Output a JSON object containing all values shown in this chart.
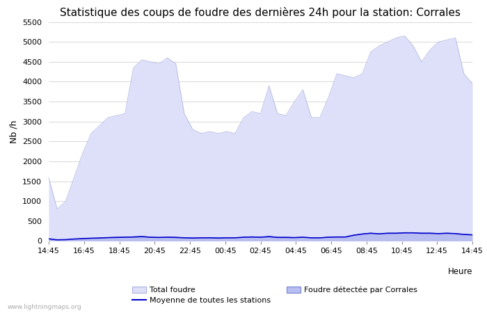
{
  "title": "Statistique des coups de foudre des dernières 24h pour la station: Corrales",
  "ylabel": "Nb /h",
  "xlabel": "Heure",
  "watermark": "www.lightningmaps.org",
  "xlabels": [
    "14:45",
    "16:45",
    "18:45",
    "20:45",
    "22:45",
    "00:45",
    "02:45",
    "04:45",
    "06:45",
    "08:45",
    "10:45",
    "12:45",
    "14:45"
  ],
  "ylim": [
    0,
    5500
  ],
  "yticks": [
    0,
    500,
    1000,
    1500,
    2000,
    2500,
    3000,
    3500,
    4000,
    4500,
    5000,
    5500
  ],
  "total_foudre_color": "#dde0f8",
  "total_foudre_edge": "#aab0e0",
  "corrales_color": "#b8bef0",
  "corrales_edge": "#7080d8",
  "moyenne_color": "#0000cc",
  "legend1_label": "Total foudre",
  "legend2_label": "Moyenne de toutes les stations",
  "legend3_label": "Foudre détectée par Corrales",
  "bg_color": "#ffffff",
  "grid_color": "#c8c8c8",
  "title_fontsize": 11,
  "tick_fontsize": 8,
  "total_foudre": [
    1600,
    800,
    1000,
    1600,
    2200,
    2700,
    2900,
    3100,
    3150,
    3200,
    4350,
    4550,
    4500,
    4450,
    4600,
    4450,
    3200,
    2800,
    2700,
    2750,
    2700,
    2750,
    2700,
    3100,
    3250,
    3200,
    3900,
    3200,
    3150,
    3500,
    3800,
    3100,
    3100,
    3600,
    4200,
    4150,
    4100,
    4200,
    4750,
    4900,
    5000,
    5100,
    5150,
    4900,
    4500,
    4800,
    5000,
    5050,
    5100,
    4200,
    3950
  ],
  "corrales": [
    50,
    30,
    35,
    50,
    60,
    70,
    80,
    90,
    100,
    100,
    110,
    120,
    100,
    90,
    100,
    100,
    80,
    80,
    80,
    85,
    80,
    85,
    80,
    100,
    110,
    100,
    120,
    100,
    100,
    90,
    100,
    80,
    80,
    100,
    100,
    100,
    150,
    180,
    200,
    180,
    200,
    200,
    210,
    210,
    200,
    200,
    190,
    200,
    190,
    170,
    160
  ],
  "moyenne": [
    55,
    30,
    35,
    50,
    60,
    70,
    75,
    85,
    90,
    95,
    100,
    110,
    95,
    90,
    95,
    90,
    80,
    75,
    80,
    80,
    75,
    80,
    80,
    95,
    100,
    95,
    110,
    90,
    90,
    85,
    95,
    80,
    80,
    95,
    100,
    100,
    145,
    175,
    195,
    180,
    195,
    195,
    205,
    205,
    195,
    195,
    185,
    195,
    185,
    165,
    155
  ]
}
